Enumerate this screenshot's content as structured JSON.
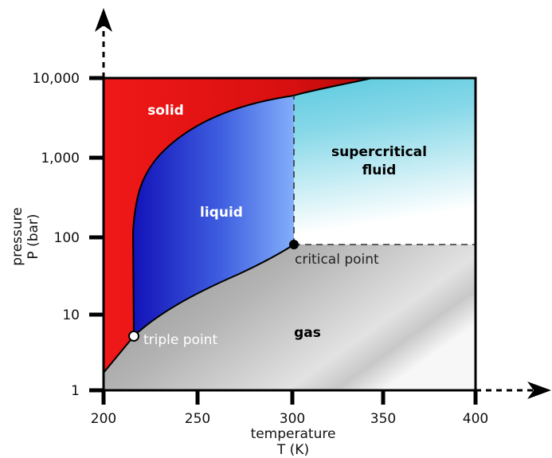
{
  "axes": {
    "x_title_line1": "temperature",
    "x_title_line2": "T (K)",
    "y_title_line1": "pressure",
    "y_title_line2": "P (bar)",
    "x_ticks": [
      "200",
      "250",
      "300",
      "350",
      "400"
    ],
    "y_ticks": [
      "1",
      "10",
      "100",
      "1,000",
      "10,000"
    ]
  },
  "regions": {
    "solid": "solid",
    "liquid": "liquid",
    "gas": "gas",
    "supercritical_line1": "supercritical",
    "supercritical_line2": "fluid"
  },
  "points": {
    "triple": "triple point",
    "critical": "critical point"
  },
  "colors": {
    "solid": "#e8141a",
    "liquid_dark": "#1414c0",
    "liquid_light": "#7aa6f8",
    "gas_dark": "#8a8a8a",
    "gas_light": "#f4f4f4",
    "supercritical": "#4cc6dd"
  }
}
